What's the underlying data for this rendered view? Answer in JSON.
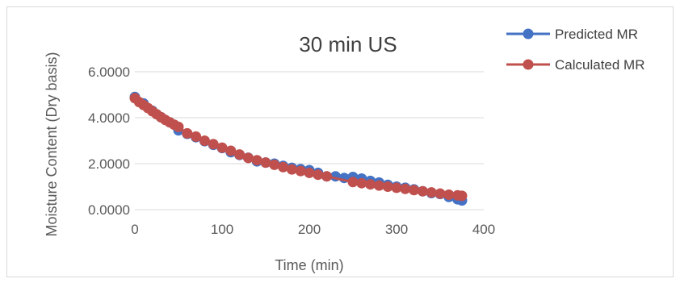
{
  "chart_data": {
    "type": "line",
    "title": "30 min US",
    "xlabel": "Time (min)",
    "ylabel": "Moisture Content (Dry basis)",
    "xlim": [
      0,
      400
    ],
    "ylim": [
      0,
      6
    ],
    "x_ticks": [
      0,
      100,
      200,
      300,
      400
    ],
    "y_ticks": [
      0,
      2,
      4,
      6
    ],
    "x_tick_labels": [
      "0",
      "100",
      "200",
      "300",
      "400"
    ],
    "y_tick_labels": [
      "0.0000",
      "2.0000",
      "4.0000",
      "6.0000"
    ],
    "grid": "horizontal",
    "legend_position": "top-right",
    "series": [
      {
        "name": "Predicted MR",
        "color": "#4472C4",
        "x": [
          0,
          10,
          20,
          30,
          40,
          50,
          60,
          70,
          80,
          90,
          100,
          110,
          120,
          130,
          140,
          150,
          160,
          170,
          180,
          190,
          200,
          210,
          220,
          230,
          240,
          250,
          260,
          270,
          280,
          290,
          300,
          310,
          320,
          330,
          340,
          350,
          360,
          370,
          375
        ],
        "values": [
          4.9,
          4.62,
          4.3,
          4.02,
          3.8,
          3.45,
          3.3,
          3.15,
          2.98,
          2.82,
          2.68,
          2.5,
          2.38,
          2.26,
          2.1,
          2.05,
          2.0,
          1.9,
          1.82,
          1.76,
          1.72,
          1.6,
          1.45,
          1.45,
          1.38,
          1.42,
          1.35,
          1.25,
          1.18,
          1.08,
          1.0,
          0.95,
          0.88,
          0.8,
          0.72,
          0.68,
          0.55,
          0.45,
          0.4
        ]
      },
      {
        "name": "Calculated MR",
        "color": "#C0504D",
        "x": [
          0,
          5,
          10,
          15,
          20,
          25,
          30,
          35,
          40,
          45,
          50,
          60,
          70,
          80,
          90,
          100,
          110,
          120,
          130,
          140,
          150,
          160,
          170,
          180,
          190,
          200,
          210,
          220,
          250,
          260,
          270,
          280,
          290,
          300,
          310,
          320,
          330,
          340,
          350,
          360,
          370,
          375
        ],
        "values": [
          4.85,
          4.68,
          4.55,
          4.42,
          4.28,
          4.15,
          4.02,
          3.9,
          3.8,
          3.7,
          3.6,
          3.32,
          3.18,
          3.0,
          2.85,
          2.7,
          2.56,
          2.4,
          2.25,
          2.15,
          2.05,
          1.95,
          1.85,
          1.75,
          1.68,
          1.6,
          1.52,
          1.45,
          1.2,
          1.15,
          1.1,
          1.05,
          1.0,
          0.95,
          0.9,
          0.85,
          0.8,
          0.75,
          0.7,
          0.65,
          0.62,
          0.6
        ]
      }
    ]
  }
}
